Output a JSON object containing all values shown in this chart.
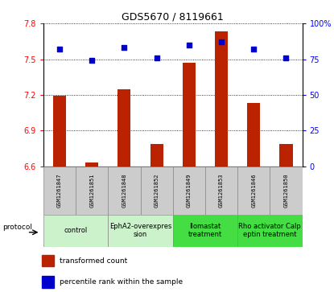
{
  "title": "GDS5670 / 8119661",
  "samples": [
    "GSM1261847",
    "GSM1261851",
    "GSM1261848",
    "GSM1261852",
    "GSM1261849",
    "GSM1261853",
    "GSM1261846",
    "GSM1261850"
  ],
  "transformed_count": [
    7.19,
    6.63,
    7.25,
    6.79,
    7.47,
    7.73,
    7.13,
    6.79
  ],
  "percentile_rank": [
    82,
    74,
    83,
    76,
    85,
    87,
    82,
    76
  ],
  "ylim_left": [
    6.6,
    7.8
  ],
  "ylim_right": [
    0,
    100
  ],
  "yticks_left": [
    6.6,
    6.9,
    7.2,
    7.5,
    7.8
  ],
  "yticks_right": [
    0,
    25,
    50,
    75,
    100
  ],
  "groups": [
    {
      "label": "control",
      "indices": [
        0,
        1
      ],
      "color": "#ccf2cc"
    },
    {
      "label": "EphA2-overexpres\nsion",
      "indices": [
        2,
        3
      ],
      "color": "#ccf2cc"
    },
    {
      "label": "Ilomastat\ntreatment",
      "indices": [
        4,
        5
      ],
      "color": "#44dd44"
    },
    {
      "label": "Rho activator Calp\neptin treatment",
      "indices": [
        6,
        7
      ],
      "color": "#44dd44"
    }
  ],
  "bar_color": "#bb2200",
  "dot_color": "#0000cc",
  "bar_width": 0.4,
  "sample_bg_color": "#cccccc",
  "title_fontsize": 9,
  "tick_fontsize": 7,
  "sample_fontsize": 5,
  "group_fontsize": 6,
  "legend_fontsize": 6.5
}
